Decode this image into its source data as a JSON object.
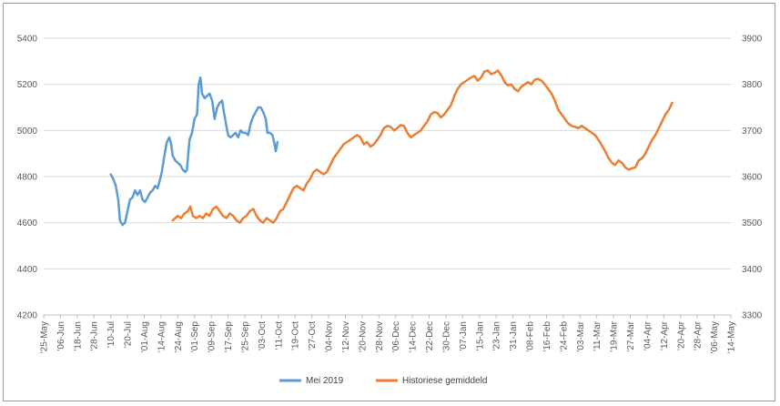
{
  "chart_data": {
    "type": "line",
    "title": "",
    "xlabel": "",
    "ylabel": "",
    "grid": true,
    "legend_position": "bottom",
    "y_left": {
      "min": 4200,
      "max": 5400,
      "ticks": [
        "4200",
        "4400",
        "4600",
        "4800",
        "5000",
        "5200",
        "5400"
      ]
    },
    "y_right": {
      "min": 3300,
      "max": 3900,
      "ticks": [
        "3300",
        "3400",
        "3500",
        "3600",
        "3700",
        "3800",
        "3900"
      ]
    },
    "x_tick_labels": [
      "'25-May",
      "'06-Jun",
      "'18-Jun",
      "'28-Jun",
      "'10-Jul",
      "'20-Jul",
      "'01-Aug",
      "'14-Aug",
      "'24-Aug",
      "'01-Sep",
      "'09-Sep",
      "'17-Sep",
      "'25-Sep",
      "'03-Oct",
      "'11-Oct",
      "'19-Oct",
      "'27-Oct",
      "'04-Nov",
      "'12-Nov",
      "'20-Nov",
      "'28-Nov",
      "'06-Dec",
      "'14-Dec",
      "'22-Dec",
      "'30-Dec",
      "'07-Jan",
      "'15-Jan",
      "'23-Jan",
      "'31-Jan",
      "'08-Feb",
      "'16-Feb",
      "'24-Feb",
      "'03-Mar",
      "'11-Mar",
      "'19-Mar",
      "'27-Mar",
      "'04-Apr",
      "'12-Apr",
      "'20-Apr",
      "'28-Apr",
      "'06-May",
      "'14-May"
    ],
    "x_tick_count": 42,
    "series": [
      {
        "name": "Mei 2019",
        "axis": "left",
        "color": "#5B9BD5",
        "points": [
          [
            4.0,
            4810
          ],
          [
            4.15,
            4790
          ],
          [
            4.3,
            4760
          ],
          [
            4.45,
            4700
          ],
          [
            4.55,
            4610
          ],
          [
            4.7,
            4590
          ],
          [
            4.85,
            4600
          ],
          [
            5.0,
            4650
          ],
          [
            5.15,
            4700
          ],
          [
            5.3,
            4710
          ],
          [
            5.45,
            4740
          ],
          [
            5.6,
            4720
          ],
          [
            5.75,
            4740
          ],
          [
            5.9,
            4700
          ],
          [
            6.05,
            4690
          ],
          [
            6.2,
            4710
          ],
          [
            6.35,
            4730
          ],
          [
            6.5,
            4740
          ],
          [
            6.65,
            4760
          ],
          [
            6.8,
            4750
          ],
          [
            6.95,
            4790
          ],
          [
            7.05,
            4820
          ],
          [
            7.2,
            4890
          ],
          [
            7.35,
            4950
          ],
          [
            7.5,
            4970
          ],
          [
            7.6,
            4940
          ],
          [
            7.7,
            4890
          ],
          [
            7.85,
            4870
          ],
          [
            8.0,
            4860
          ],
          [
            8.15,
            4850
          ],
          [
            8.3,
            4830
          ],
          [
            8.45,
            4820
          ],
          [
            8.55,
            4830
          ],
          [
            8.7,
            4960
          ],
          [
            8.85,
            4990
          ],
          [
            9.0,
            5050
          ],
          [
            9.15,
            5070
          ],
          [
            9.25,
            5200
          ],
          [
            9.35,
            5230
          ],
          [
            9.45,
            5160
          ],
          [
            9.6,
            5140
          ],
          [
            9.75,
            5150
          ],
          [
            9.9,
            5160
          ],
          [
            10.05,
            5130
          ],
          [
            10.2,
            5050
          ],
          [
            10.35,
            5100
          ],
          [
            10.5,
            5120
          ],
          [
            10.65,
            5130
          ],
          [
            10.75,
            5080
          ],
          [
            10.85,
            5040
          ],
          [
            11.0,
            4980
          ],
          [
            11.15,
            4970
          ],
          [
            11.3,
            4980
          ],
          [
            11.45,
            4990
          ],
          [
            11.6,
            4970
          ],
          [
            11.75,
            5000
          ],
          [
            11.9,
            4990
          ],
          [
            12.05,
            4990
          ],
          [
            12.2,
            4980
          ],
          [
            12.35,
            5030
          ],
          [
            12.5,
            5060
          ],
          [
            12.65,
            5080
          ],
          [
            12.8,
            5100
          ],
          [
            12.95,
            5100
          ],
          [
            13.1,
            5080
          ],
          [
            13.25,
            5050
          ],
          [
            13.35,
            4990
          ],
          [
            13.5,
            4990
          ],
          [
            13.65,
            4980
          ],
          [
            13.75,
            4950
          ],
          [
            13.85,
            4910
          ],
          [
            13.95,
            4950
          ]
        ]
      },
      {
        "name": "Historiese gemiddeld",
        "axis": "right",
        "color": "#ED7D31",
        "points": [
          [
            7.7,
            3505
          ],
          [
            7.85,
            3510
          ],
          [
            8.0,
            3515
          ],
          [
            8.2,
            3510
          ],
          [
            8.4,
            3520
          ],
          [
            8.6,
            3525
          ],
          [
            8.75,
            3535
          ],
          [
            8.9,
            3515
          ],
          [
            9.1,
            3510
          ],
          [
            9.3,
            3515
          ],
          [
            9.5,
            3510
          ],
          [
            9.7,
            3520
          ],
          [
            9.9,
            3515
          ],
          [
            10.1,
            3530
          ],
          [
            10.3,
            3535
          ],
          [
            10.5,
            3525
          ],
          [
            10.7,
            3515
          ],
          [
            10.9,
            3510
          ],
          [
            11.1,
            3520
          ],
          [
            11.3,
            3515
          ],
          [
            11.5,
            3505
          ],
          [
            11.7,
            3500
          ],
          [
            11.9,
            3510
          ],
          [
            12.1,
            3515
          ],
          [
            12.3,
            3525
          ],
          [
            12.5,
            3530
          ],
          [
            12.7,
            3515
          ],
          [
            12.9,
            3505
          ],
          [
            13.1,
            3500
          ],
          [
            13.3,
            3510
          ],
          [
            13.5,
            3505
          ],
          [
            13.7,
            3500
          ],
          [
            13.9,
            3510
          ],
          [
            14.1,
            3525
          ],
          [
            14.3,
            3530
          ],
          [
            14.5,
            3545
          ],
          [
            14.7,
            3560
          ],
          [
            14.9,
            3575
          ],
          [
            15.1,
            3580
          ],
          [
            15.3,
            3575
          ],
          [
            15.5,
            3570
          ],
          [
            15.7,
            3585
          ],
          [
            15.9,
            3595
          ],
          [
            16.1,
            3610
          ],
          [
            16.3,
            3615
          ],
          [
            16.5,
            3610
          ],
          [
            16.7,
            3605
          ],
          [
            16.9,
            3610
          ],
          [
            17.1,
            3625
          ],
          [
            17.3,
            3640
          ],
          [
            17.5,
            3650
          ],
          [
            17.7,
            3660
          ],
          [
            17.9,
            3670
          ],
          [
            18.1,
            3675
          ],
          [
            18.3,
            3680
          ],
          [
            18.5,
            3685
          ],
          [
            18.7,
            3690
          ],
          [
            18.9,
            3685
          ],
          [
            19.1,
            3670
          ],
          [
            19.3,
            3675
          ],
          [
            19.5,
            3665
          ],
          [
            19.7,
            3670
          ],
          [
            19.9,
            3680
          ],
          [
            20.1,
            3690
          ],
          [
            20.3,
            3705
          ],
          [
            20.5,
            3710
          ],
          [
            20.7,
            3708
          ],
          [
            20.9,
            3700
          ],
          [
            21.1,
            3705
          ],
          [
            21.3,
            3712
          ],
          [
            21.5,
            3710
          ],
          [
            21.7,
            3695
          ],
          [
            21.9,
            3685
          ],
          [
            22.1,
            3690
          ],
          [
            22.3,
            3695
          ],
          [
            22.5,
            3700
          ],
          [
            22.7,
            3710
          ],
          [
            22.9,
            3720
          ],
          [
            23.1,
            3735
          ],
          [
            23.3,
            3740
          ],
          [
            23.5,
            3738
          ],
          [
            23.7,
            3728
          ],
          [
            23.9,
            3735
          ],
          [
            24.1,
            3745
          ],
          [
            24.3,
            3755
          ],
          [
            24.5,
            3775
          ],
          [
            24.7,
            3790
          ],
          [
            24.9,
            3800
          ],
          [
            25.1,
            3805
          ],
          [
            25.3,
            3810
          ],
          [
            25.5,
            3815
          ],
          [
            25.7,
            3818
          ],
          [
            25.9,
            3808
          ],
          [
            26.1,
            3815
          ],
          [
            26.3,
            3828
          ],
          [
            26.5,
            3830
          ],
          [
            26.7,
            3822
          ],
          [
            26.9,
            3825
          ],
          [
            27.1,
            3830
          ],
          [
            27.3,
            3820
          ],
          [
            27.5,
            3805
          ],
          [
            27.7,
            3798
          ],
          [
            27.9,
            3800
          ],
          [
            28.1,
            3790
          ],
          [
            28.3,
            3785
          ],
          [
            28.5,
            3795
          ],
          [
            28.7,
            3800
          ],
          [
            28.9,
            3805
          ],
          [
            29.1,
            3800
          ],
          [
            29.3,
            3810
          ],
          [
            29.5,
            3812
          ],
          [
            29.7,
            3808
          ],
          [
            29.9,
            3800
          ],
          [
            30.1,
            3790
          ],
          [
            30.3,
            3780
          ],
          [
            30.5,
            3765
          ],
          [
            30.7,
            3745
          ],
          [
            30.9,
            3735
          ],
          [
            31.1,
            3725
          ],
          [
            31.3,
            3715
          ],
          [
            31.5,
            3710
          ],
          [
            31.7,
            3708
          ],
          [
            31.9,
            3705
          ],
          [
            32.1,
            3710
          ],
          [
            32.3,
            3705
          ],
          [
            32.5,
            3700
          ],
          [
            32.7,
            3695
          ],
          [
            32.9,
            3690
          ],
          [
            33.1,
            3680
          ],
          [
            33.3,
            3668
          ],
          [
            33.5,
            3655
          ],
          [
            33.7,
            3640
          ],
          [
            33.9,
            3630
          ],
          [
            34.1,
            3625
          ],
          [
            34.3,
            3635
          ],
          [
            34.5,
            3630
          ],
          [
            34.7,
            3620
          ],
          [
            34.9,
            3615
          ],
          [
            35.1,
            3618
          ],
          [
            35.3,
            3620
          ],
          [
            35.5,
            3635
          ],
          [
            35.7,
            3640
          ],
          [
            35.9,
            3650
          ],
          [
            36.1,
            3665
          ],
          [
            36.3,
            3680
          ],
          [
            36.5,
            3690
          ],
          [
            36.7,
            3705
          ],
          [
            36.9,
            3720
          ],
          [
            37.1,
            3735
          ],
          [
            37.3,
            3745
          ],
          [
            37.5,
            3760
          ]
        ]
      }
    ]
  }
}
